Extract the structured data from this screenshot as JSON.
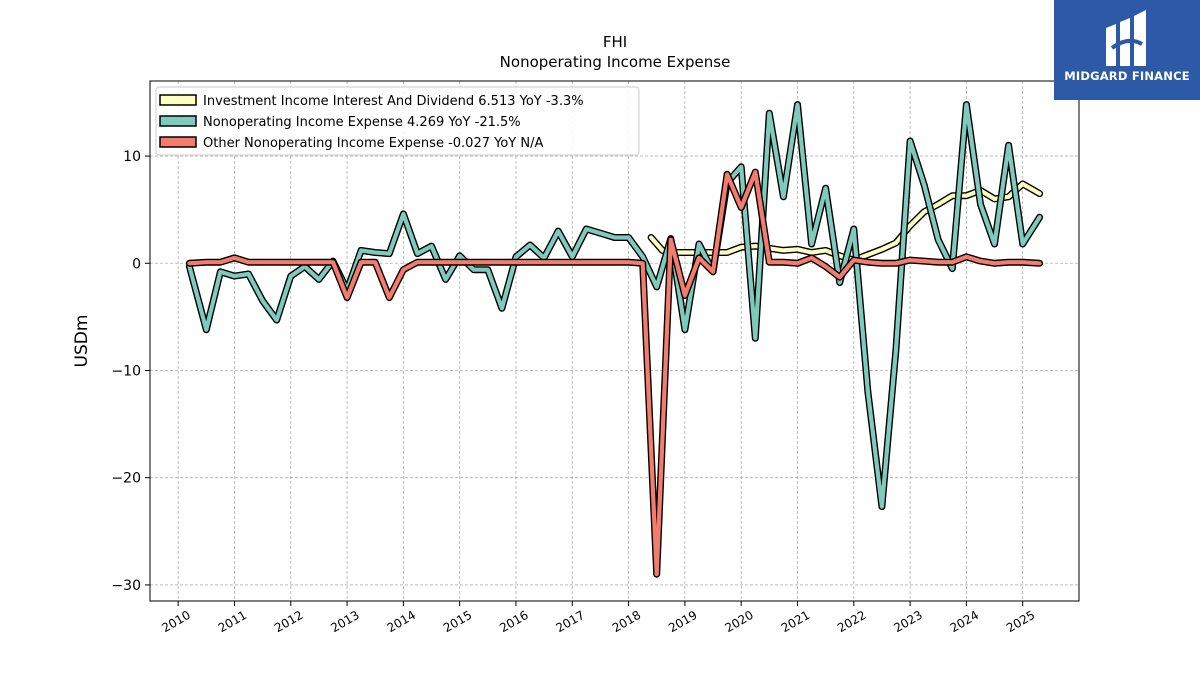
{
  "brand": {
    "name": "MIDGARD FINANCE",
    "color": "#2d5aa6"
  },
  "chart_data": {
    "type": "line",
    "title": "FHI",
    "subtitle": "Nonoperating Income Expense",
    "xlabel": "",
    "ylabel": "USDm",
    "xlim": [
      2009.5,
      2026.0
    ],
    "ylim": [
      -31.5,
      17.0
    ],
    "x_ticks": [
      2010,
      2011,
      2012,
      2013,
      2014,
      2015,
      2016,
      2017,
      2018,
      2019,
      2020,
      2021,
      2022,
      2023,
      2024,
      2025
    ],
    "x_tick_labels": [
      "2010",
      "2011",
      "2012",
      "2013",
      "2014",
      "2015",
      "2016",
      "2017",
      "2018",
      "2019",
      "2020",
      "2021",
      "2022",
      "2023",
      "2024",
      "2025"
    ],
    "y_ticks": [
      -30,
      -20,
      -10,
      0,
      10
    ],
    "y_tick_labels": [
      "−30",
      "−20",
      "−10",
      "0",
      "10"
    ],
    "grid": true,
    "legend_position": "top-left",
    "series": [
      {
        "name": "Investment Income Interest And Dividend",
        "legend_label": "Investment Income Interest And Dividend  6.513 YoY -3.3%",
        "color": "#ffffc0",
        "x": [
          2018.4,
          2018.6,
          2018.8,
          2019.0,
          2019.25,
          2019.5,
          2019.75,
          2020.0,
          2020.25,
          2020.5,
          2020.75,
          2021.0,
          2021.25,
          2021.5,
          2021.75,
          2022.0,
          2022.25,
          2022.5,
          2022.75,
          2023.0,
          2023.25,
          2023.5,
          2023.75,
          2024.0,
          2024.25,
          2024.5,
          2024.75,
          2025.0,
          2025.3
        ],
        "y": [
          2.4,
          1.2,
          1.0,
          1.0,
          1.0,
          1.0,
          1.0,
          1.5,
          1.6,
          1.4,
          1.2,
          1.3,
          1.0,
          1.2,
          0.7,
          0.3,
          0.8,
          1.3,
          1.9,
          3.5,
          4.8,
          5.5,
          6.3,
          6.3,
          6.8,
          6.0,
          6.2,
          7.4,
          6.5
        ]
      },
      {
        "name": "Nonoperating Income Expense",
        "legend_label": "Nonoperating Income Expense  4.269 YoY -21.5%",
        "color": "#7ecbbd",
        "x": [
          2010.2,
          2010.5,
          2010.75,
          2011.0,
          2011.25,
          2011.5,
          2011.75,
          2012.0,
          2012.25,
          2012.5,
          2012.75,
          2013.0,
          2013.25,
          2013.5,
          2013.75,
          2014.0,
          2014.25,
          2014.5,
          2014.75,
          2015.0,
          2015.25,
          2015.5,
          2015.75,
          2016.0,
          2016.25,
          2016.5,
          2016.75,
          2017.0,
          2017.25,
          2017.5,
          2017.75,
          2018.0,
          2018.25,
          2018.5,
          2018.75,
          2019.0,
          2019.25,
          2019.5,
          2019.75,
          2020.0,
          2020.25,
          2020.5,
          2020.75,
          2021.0,
          2021.25,
          2021.5,
          2021.75,
          2022.0,
          2022.25,
          2022.5,
          2022.75,
          2023.0,
          2023.25,
          2023.5,
          2023.75,
          2024.0,
          2024.25,
          2024.5,
          2024.75,
          2025.0,
          2025.3
        ],
        "y": [
          -0.3,
          -6.2,
          -0.8,
          -1.2,
          -1.0,
          -3.5,
          -5.3,
          -1.2,
          -0.3,
          -1.5,
          0.2,
          -2.5,
          1.2,
          1.0,
          0.9,
          4.6,
          0.9,
          1.6,
          -1.5,
          0.7,
          -0.6,
          -0.6,
          -4.2,
          0.6,
          1.7,
          0.5,
          3.0,
          0.6,
          3.2,
          2.8,
          2.4,
          2.4,
          0.6,
          -2.2,
          2.3,
          -6.2,
          1.8,
          -0.8,
          7.5,
          9.0,
          -7.0,
          14.0,
          6.2,
          14.8,
          1.8,
          7.0,
          -1.8,
          3.2,
          -12.0,
          -22.7,
          -8.0,
          11.4,
          7.3,
          2.2,
          -0.5,
          14.8,
          5.5,
          1.8,
          11.0,
          1.8,
          4.3
        ]
      },
      {
        "name": "Other Nonoperating Income Expense",
        "legend_label": "Other Nonoperating Income Expense  -0.027 YoY N/A",
        "color": "#f47c6c",
        "x": [
          2010.2,
          2010.5,
          2010.75,
          2011.0,
          2011.25,
          2011.5,
          2011.75,
          2012.0,
          2012.25,
          2012.5,
          2012.75,
          2013.0,
          2013.25,
          2013.5,
          2013.75,
          2014.0,
          2014.25,
          2014.5,
          2014.75,
          2015.0,
          2015.25,
          2015.5,
          2015.75,
          2016.0,
          2016.25,
          2016.5,
          2016.75,
          2017.0,
          2017.25,
          2017.5,
          2017.75,
          2018.0,
          2018.25,
          2018.5,
          2018.75,
          2019.0,
          2019.25,
          2019.5,
          2019.75,
          2020.0,
          2020.25,
          2020.5,
          2020.75,
          2021.0,
          2021.25,
          2021.5,
          2021.75,
          2022.0,
          2022.25,
          2022.5,
          2022.75,
          2023.0,
          2023.25,
          2023.5,
          2023.75,
          2024.0,
          2024.25,
          2024.5,
          2024.75,
          2025.0,
          2025.3
        ],
        "y": [
          0.0,
          0.1,
          0.1,
          0.5,
          0.1,
          0.1,
          0.1,
          0.1,
          0.1,
          0.1,
          0.1,
          -3.2,
          0.1,
          0.1,
          -3.2,
          -0.6,
          0.1,
          0.1,
          0.1,
          0.1,
          0.1,
          0.1,
          0.1,
          0.1,
          0.1,
          0.1,
          0.1,
          0.1,
          0.1,
          0.1,
          0.1,
          0.1,
          0.0,
          -29.0,
          2.2,
          -3.0,
          0.5,
          -0.8,
          8.3,
          5.2,
          8.5,
          0.1,
          0.1,
          0.0,
          0.5,
          -0.3,
          -1.3,
          0.3,
          0.1,
          0.0,
          0.0,
          0.3,
          0.2,
          0.1,
          0.1,
          0.6,
          0.2,
          0.0,
          0.1,
          0.1,
          0.0
        ]
      }
    ]
  }
}
